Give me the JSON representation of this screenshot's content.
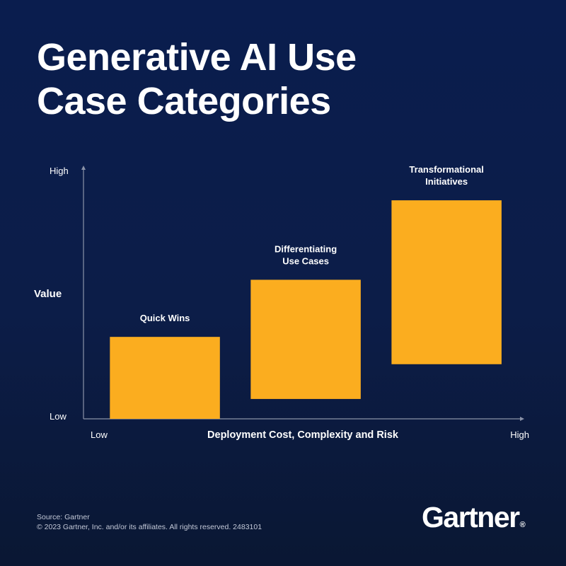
{
  "title_lines": [
    "Generative AI Use",
    "Case Categories"
  ],
  "chart_data": {
    "type": "bar",
    "title": "Generative AI Use Case Categories",
    "xlabel": "Deployment Cost, Complexity and Risk",
    "ylabel": "Value",
    "x_ticks": [
      "Low",
      "High"
    ],
    "y_ticks": [
      "Low",
      "High"
    ],
    "xlim": [
      0,
      1
    ],
    "ylim": [
      0,
      1
    ],
    "grid": false,
    "legend": "none",
    "bar_color": "#fbad1f",
    "categories": [
      {
        "name": "Quick Wins",
        "label_lines": [
          "Quick Wins"
        ],
        "cost_range": [
          0.06,
          0.31
        ],
        "value_range": [
          0.0,
          0.33
        ]
      },
      {
        "name": "Differentiating Use Cases",
        "label_lines": [
          "Differentiating",
          "Use Cases"
        ],
        "cost_range": [
          0.38,
          0.63
        ],
        "value_range": [
          0.08,
          0.56
        ]
      },
      {
        "name": "Transformational Initiatives",
        "label_lines": [
          "Transformational",
          "Initiatives"
        ],
        "cost_range": [
          0.7,
          0.95
        ],
        "value_range": [
          0.22,
          0.88
        ]
      }
    ]
  },
  "source_lines": [
    "Source: Gartner",
    "© 2023 Gartner, Inc. and/or its affiliates. All rights reserved. 2483101"
  ],
  "logo": {
    "text": "Gartner",
    "mark": "®"
  },
  "colors": {
    "background": "#0b1d4a",
    "axis": "#8b93a8",
    "text": "#ffffff"
  }
}
